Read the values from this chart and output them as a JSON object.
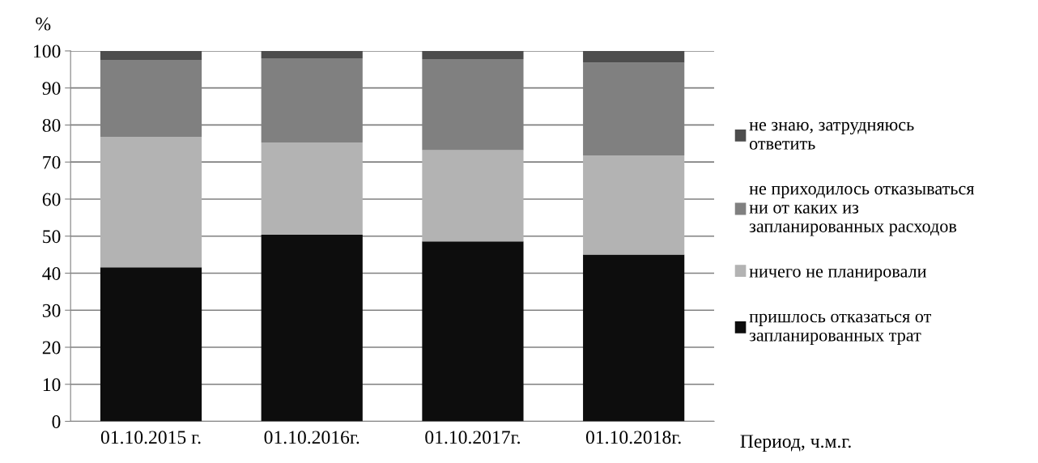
{
  "chart_data": {
    "type": "bar",
    "stacked": true,
    "ylabel": "%",
    "xlabel": "Период, ч.м.г.",
    "categories": [
      "01.10.2015 г.",
      "01.10.2016г.",
      "01.10.2017г.",
      "01.10.2018г."
    ],
    "series": [
      {
        "name": "пришлось отказаться от\nзапланированных трат",
        "color": "#0d0d0d",
        "values": [
          41.6,
          50.4,
          48.6,
          45.0
        ]
      },
      {
        "name": "ничего не планировали",
        "color": "#b3b3b3",
        "values": [
          35.2,
          24.9,
          24.6,
          26.8
        ]
      },
      {
        "name": "не приходилось отказываться\nни от каких из\nзапланированных расходов",
        "color": "#808080",
        "values": [
          20.8,
          22.7,
          24.6,
          25.0
        ]
      },
      {
        "name": "не знаю, затрудняюсь\nответить",
        "color": "#4d4d4d",
        "values": [
          2.4,
          2.0,
          2.2,
          3.2
        ]
      }
    ],
    "ylim": [
      0,
      100
    ],
    "yticks": [
      0,
      10,
      20,
      30,
      40,
      50,
      60,
      70,
      80,
      90,
      100
    ],
    "grid": "y",
    "legend": "right"
  }
}
